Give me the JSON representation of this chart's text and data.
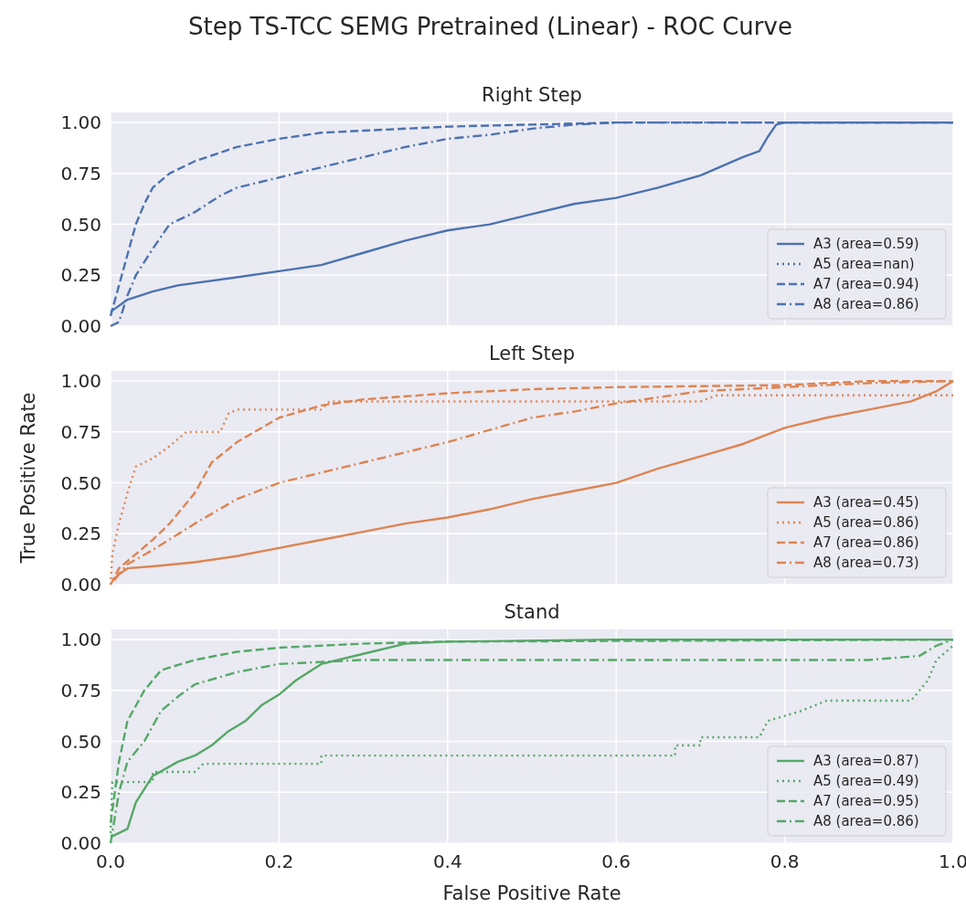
{
  "chart_data": [
    {
      "type": "line",
      "title": "Right Step",
      "annotations": [
        "Step TS-TCC SEMG Pretrained (Linear) - ROC Curve"
      ],
      "xlim": [
        0,
        1
      ],
      "ylim": [
        0,
        1.05
      ],
      "xticks": [
        {
          "value": 0,
          "label": null
        },
        {
          "value": 0.2,
          "label": null
        },
        {
          "value": 0.4,
          "label": null
        },
        {
          "value": 0.6,
          "label": null
        },
        {
          "value": 0.8,
          "label": null
        },
        {
          "value": 1,
          "label": null
        }
      ],
      "yticks": [
        {
          "value": 0,
          "label": "0.00"
        },
        {
          "value": 0.25,
          "label": "0.25"
        },
        {
          "value": 0.5,
          "label": "0.50"
        },
        {
          "value": 0.75,
          "label": "0.75"
        },
        {
          "value": 1,
          "label": "1.00"
        }
      ],
      "tick_labels": "y",
      "grid": true,
      "legend": "bottom right",
      "series": [
        {
          "name": "A3 (area=0.59)",
          "color": "#4c72b0",
          "line_style": "solid",
          "x": [
            0,
            0.02,
            0.05,
            0.08,
            0.15,
            0.2,
            0.25,
            0.3,
            0.35,
            0.4,
            0.45,
            0.5,
            0.55,
            0.6,
            0.65,
            0.7,
            0.75,
            0.77,
            0.78,
            0.79,
            0.8,
            1
          ],
          "values": [
            0.07,
            0.13,
            0.17,
            0.2,
            0.24,
            0.27,
            0.3,
            0.36,
            0.42,
            0.47,
            0.5,
            0.55,
            0.6,
            0.63,
            0.68,
            0.74,
            0.83,
            0.86,
            0.93,
            0.99,
            1,
            1
          ]
        },
        {
          "name": "A5 (area=nan)",
          "color": "#4c72b0",
          "line_style": "dotted"
        },
        {
          "name": "A7 (area=0.94)",
          "color": "#4c72b0",
          "line_style": "dashed",
          "x": [
            0,
            0.01,
            0.02,
            0.03,
            0.04,
            0.05,
            0.07,
            0.1,
            0.15,
            0.2,
            0.25,
            0.3,
            0.4,
            0.5,
            0.6,
            1
          ],
          "values": [
            0.05,
            0.2,
            0.35,
            0.5,
            0.6,
            0.68,
            0.75,
            0.81,
            0.88,
            0.92,
            0.95,
            0.96,
            0.98,
            0.99,
            1,
            1
          ]
        },
        {
          "name": "A8 (area=0.86)",
          "color": "#4c72b0",
          "line_style": "dashdot",
          "x": [
            0,
            0.01,
            0.02,
            0.03,
            0.05,
            0.07,
            0.1,
            0.13,
            0.15,
            0.2,
            0.25,
            0.3,
            0.35,
            0.4,
            0.45,
            0.5,
            0.55,
            0.6,
            1
          ],
          "values": [
            0,
            0.02,
            0.15,
            0.25,
            0.38,
            0.5,
            0.56,
            0.64,
            0.68,
            0.73,
            0.78,
            0.83,
            0.88,
            0.92,
            0.94,
            0.97,
            0.99,
            1,
            1
          ]
        }
      ]
    },
    {
      "type": "line",
      "title": "Left Step",
      "ylabel": "True Positive Rate",
      "xlim": [
        0,
        1
      ],
      "ylim": [
        0,
        1.05
      ],
      "xticks": [
        {
          "value": 0,
          "label": null
        },
        {
          "value": 0.2,
          "label": null
        },
        {
          "value": 0.4,
          "label": null
        },
        {
          "value": 0.6,
          "label": null
        },
        {
          "value": 0.8,
          "label": null
        },
        {
          "value": 1,
          "label": null
        }
      ],
      "yticks": [
        {
          "value": 0,
          "label": "0.00"
        },
        {
          "value": 0.25,
          "label": "0.25"
        },
        {
          "value": 0.5,
          "label": "0.50"
        },
        {
          "value": 0.75,
          "label": "0.75"
        },
        {
          "value": 1,
          "label": "1.00"
        }
      ],
      "tick_labels": "y",
      "grid": true,
      "legend": "bottom right",
      "series": [
        {
          "name": "A3 (area=0.45)",
          "color": "#dd8452",
          "line_style": "solid",
          "x": [
            0.004,
            0.01,
            0.02,
            0.05,
            0.1,
            0.15,
            0.2,
            0.25,
            0.3,
            0.35,
            0.4,
            0.45,
            0.5,
            0.55,
            0.6,
            0.65,
            0.7,
            0.75,
            0.8,
            0.85,
            0.9,
            0.95,
            0.98,
            1
          ],
          "values": [
            0.02,
            0.05,
            0.08,
            0.09,
            0.11,
            0.14,
            0.18,
            0.22,
            0.26,
            0.3,
            0.33,
            0.37,
            0.42,
            0.46,
            0.5,
            0.57,
            0.63,
            0.69,
            0.77,
            0.82,
            0.86,
            0.9,
            0.95,
            1
          ]
        },
        {
          "name": "A5 (area=0.86)",
          "color": "#dd8452",
          "line_style": "dotted",
          "x": [
            0,
            0.002,
            0.01,
            0.02,
            0.03,
            0.05,
            0.07,
            0.09,
            0.13,
            0.14,
            0.15,
            0.25,
            0.26,
            0.7,
            0.72,
            1
          ],
          "values": [
            0,
            0.15,
            0.3,
            0.45,
            0.58,
            0.62,
            0.68,
            0.75,
            0.75,
            0.84,
            0.86,
            0.86,
            0.9,
            0.9,
            0.93,
            0.93
          ]
        },
        {
          "name": "A7 (area=0.86)",
          "color": "#dd8452",
          "line_style": "dashed",
          "x": [
            0,
            0.01,
            0.03,
            0.05,
            0.07,
            0.1,
            0.12,
            0.15,
            0.2,
            0.25,
            0.3,
            0.4,
            0.5,
            0.6,
            0.8,
            0.9,
            1
          ],
          "values": [
            0,
            0.08,
            0.15,
            0.22,
            0.3,
            0.45,
            0.6,
            0.7,
            0.82,
            0.88,
            0.91,
            0.94,
            0.96,
            0.97,
            0.98,
            1,
            1
          ]
        },
        {
          "name": "A8 (area=0.73)",
          "color": "#dd8452",
          "line_style": "dashdot",
          "x": [
            0.005,
            0.02,
            0.05,
            0.1,
            0.15,
            0.2,
            0.25,
            0.3,
            0.35,
            0.4,
            0.45,
            0.5,
            0.55,
            0.6,
            0.65,
            0.7,
            0.8,
            0.9,
            1
          ],
          "values": [
            0.03,
            0.1,
            0.17,
            0.3,
            0.42,
            0.5,
            0.55,
            0.6,
            0.65,
            0.7,
            0.76,
            0.82,
            0.85,
            0.89,
            0.92,
            0.95,
            0.97,
            0.99,
            1
          ]
        }
      ]
    },
    {
      "type": "line",
      "title": "Stand",
      "xlabel": "False Positive Rate",
      "xlim": [
        0,
        1
      ],
      "ylim": [
        0,
        1.05
      ],
      "xticks": [
        {
          "value": 0,
          "label": "0.0"
        },
        {
          "value": 0.2,
          "label": "0.2"
        },
        {
          "value": 0.4,
          "label": "0.4"
        },
        {
          "value": 0.6,
          "label": "0.6"
        },
        {
          "value": 0.8,
          "label": "0.8"
        },
        {
          "value": 1,
          "label": "1.0"
        }
      ],
      "yticks": [
        {
          "value": 0,
          "label": "0.00"
        },
        {
          "value": 0.25,
          "label": "0.25"
        },
        {
          "value": 0.5,
          "label": "0.50"
        },
        {
          "value": 0.75,
          "label": "0.75"
        },
        {
          "value": 1,
          "label": "1.00"
        }
      ],
      "grid": true,
      "legend": "bottom right",
      "series": [
        {
          "name": "A3 (area=0.87)",
          "color": "#55a868",
          "line_style": "solid",
          "x": [
            0,
            0.02,
            0.03,
            0.05,
            0.08,
            0.1,
            0.12,
            0.14,
            0.16,
            0.18,
            0.2,
            0.22,
            0.25,
            0.3,
            0.35,
            0.4,
            0.6,
            1
          ],
          "values": [
            0.03,
            0.07,
            0.2,
            0.33,
            0.4,
            0.43,
            0.48,
            0.55,
            0.6,
            0.68,
            0.73,
            0.8,
            0.88,
            0.93,
            0.98,
            0.99,
            1,
            1
          ]
        },
        {
          "name": "A5 (area=0.49)",
          "color": "#55a868",
          "line_style": "dotted",
          "x": [
            0,
            0.002,
            0.05,
            0.05,
            0.1,
            0.11,
            0.25,
            0.25,
            0.67,
            0.67,
            0.7,
            0.7,
            0.77,
            0.78,
            0.82,
            0.85,
            0.95,
            0.97,
            0.98,
            1
          ],
          "values": [
            0.05,
            0.3,
            0.3,
            0.35,
            0.35,
            0.39,
            0.39,
            0.43,
            0.43,
            0.48,
            0.48,
            0.52,
            0.52,
            0.6,
            0.65,
            0.7,
            0.7,
            0.8,
            0.9,
            0.97
          ]
        },
        {
          "name": "A7 (area=0.95)",
          "color": "#55a868",
          "line_style": "dashed",
          "x": [
            0,
            0.01,
            0.02,
            0.04,
            0.06,
            0.1,
            0.15,
            0.2,
            0.3,
            0.4,
            1
          ],
          "values": [
            0.1,
            0.4,
            0.6,
            0.75,
            0.85,
            0.9,
            0.94,
            0.96,
            0.98,
            0.99,
            1
          ]
        },
        {
          "name": "A8 (area=0.86)",
          "color": "#55a868",
          "line_style": "dashdot",
          "x": [
            0,
            0.01,
            0.02,
            0.04,
            0.06,
            0.08,
            0.1,
            0.15,
            0.2,
            0.25,
            0.3,
            0.9,
            0.96,
            0.98,
            1
          ],
          "values": [
            0,
            0.25,
            0.4,
            0.5,
            0.65,
            0.72,
            0.78,
            0.84,
            0.88,
            0.89,
            0.9,
            0.9,
            0.92,
            0.97,
            1
          ]
        }
      ]
    }
  ]
}
